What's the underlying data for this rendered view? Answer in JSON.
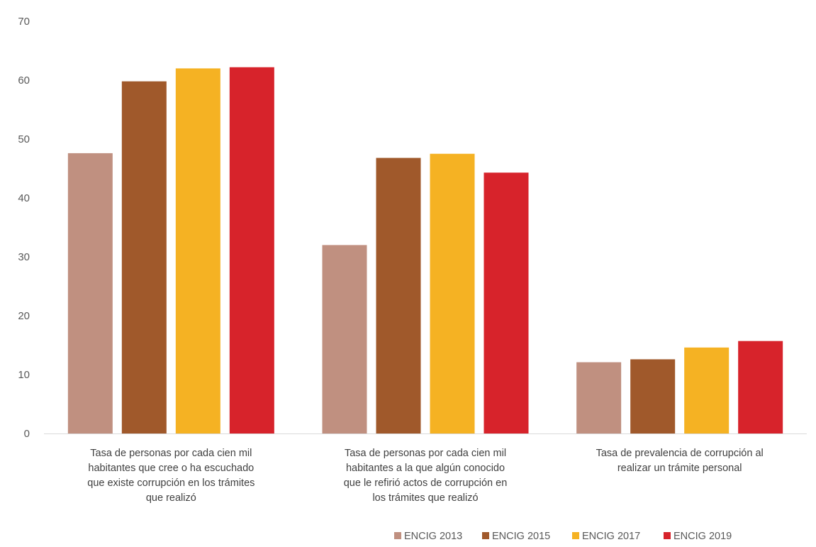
{
  "chart_data": {
    "type": "bar",
    "title": "",
    "xlabel": "",
    "ylabel": "",
    "ylim": [
      0,
      70
    ],
    "yticks": [
      0,
      10,
      20,
      30,
      40,
      50,
      60,
      70
    ],
    "grid": false,
    "legend_position": "bottom-right",
    "categories": [
      [
        "Tasa de personas por cada cien mil",
        "habitantes que cree o ha escuchado",
        "que existe corrupción en los trámites",
        "que realizó"
      ],
      [
        "Tasa de personas por cada cien mil",
        "habitantes a la que algún conocido",
        "que le refirió actos de corrupción en",
        "los trámites que realizó"
      ],
      [
        "Tasa de prevalencia de corrupción al",
        "realizar un trámite personal"
      ]
    ],
    "series": [
      {
        "name": "ENCIG 2013",
        "color": "#c09080",
        "values": [
          47.6,
          32.0,
          12.1
        ]
      },
      {
        "name": "ENCIG 2015",
        "color": "#a0592b",
        "values": [
          59.8,
          46.8,
          12.6
        ]
      },
      {
        "name": "ENCIG 2017",
        "color": "#f5b223",
        "values": [
          62.0,
          47.5,
          14.6
        ]
      },
      {
        "name": "ENCIG 2019",
        "color": "#d7232b",
        "values": [
          62.2,
          44.3,
          15.7
        ]
      }
    ]
  }
}
